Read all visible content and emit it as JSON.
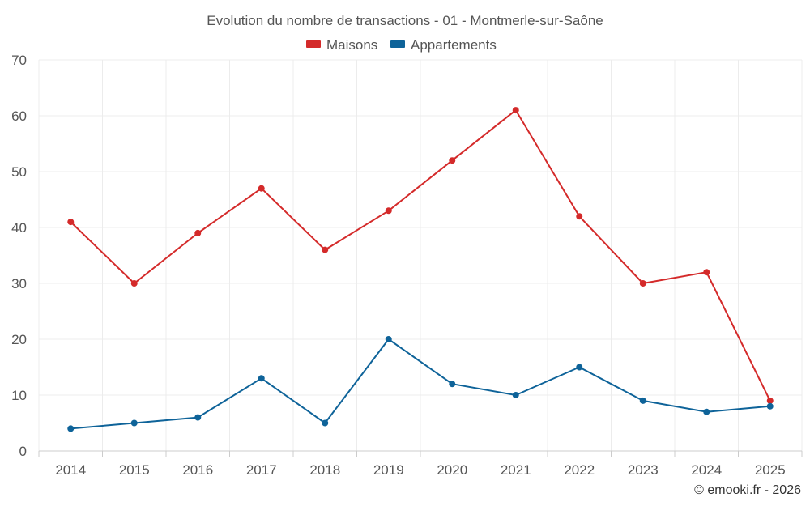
{
  "chart_data": {
    "type": "line",
    "title": "Evolution du nombre de transactions - 01 - Montmerle-sur-Saône",
    "categories": [
      "2014",
      "2015",
      "2016",
      "2017",
      "2018",
      "2019",
      "2020",
      "2021",
      "2022",
      "2023",
      "2024",
      "2025"
    ],
    "series": [
      {
        "name": "Maisons",
        "color": "#d42a2a",
        "values": [
          41,
          30,
          39,
          47,
          36,
          43,
          52,
          61,
          42,
          30,
          32,
          9
        ]
      },
      {
        "name": "Appartements",
        "color": "#0e6399",
        "values": [
          4,
          5,
          6,
          13,
          5,
          20,
          12,
          10,
          15,
          9,
          7,
          8
        ]
      }
    ],
    "ylim": [
      0,
      70
    ],
    "yticks": [
      0,
      10,
      20,
      30,
      40,
      50,
      60,
      70
    ],
    "xlabel": "",
    "ylabel": "",
    "grid": true,
    "legend_position": "top-center"
  },
  "credit": "© emooki.fr - 2026"
}
